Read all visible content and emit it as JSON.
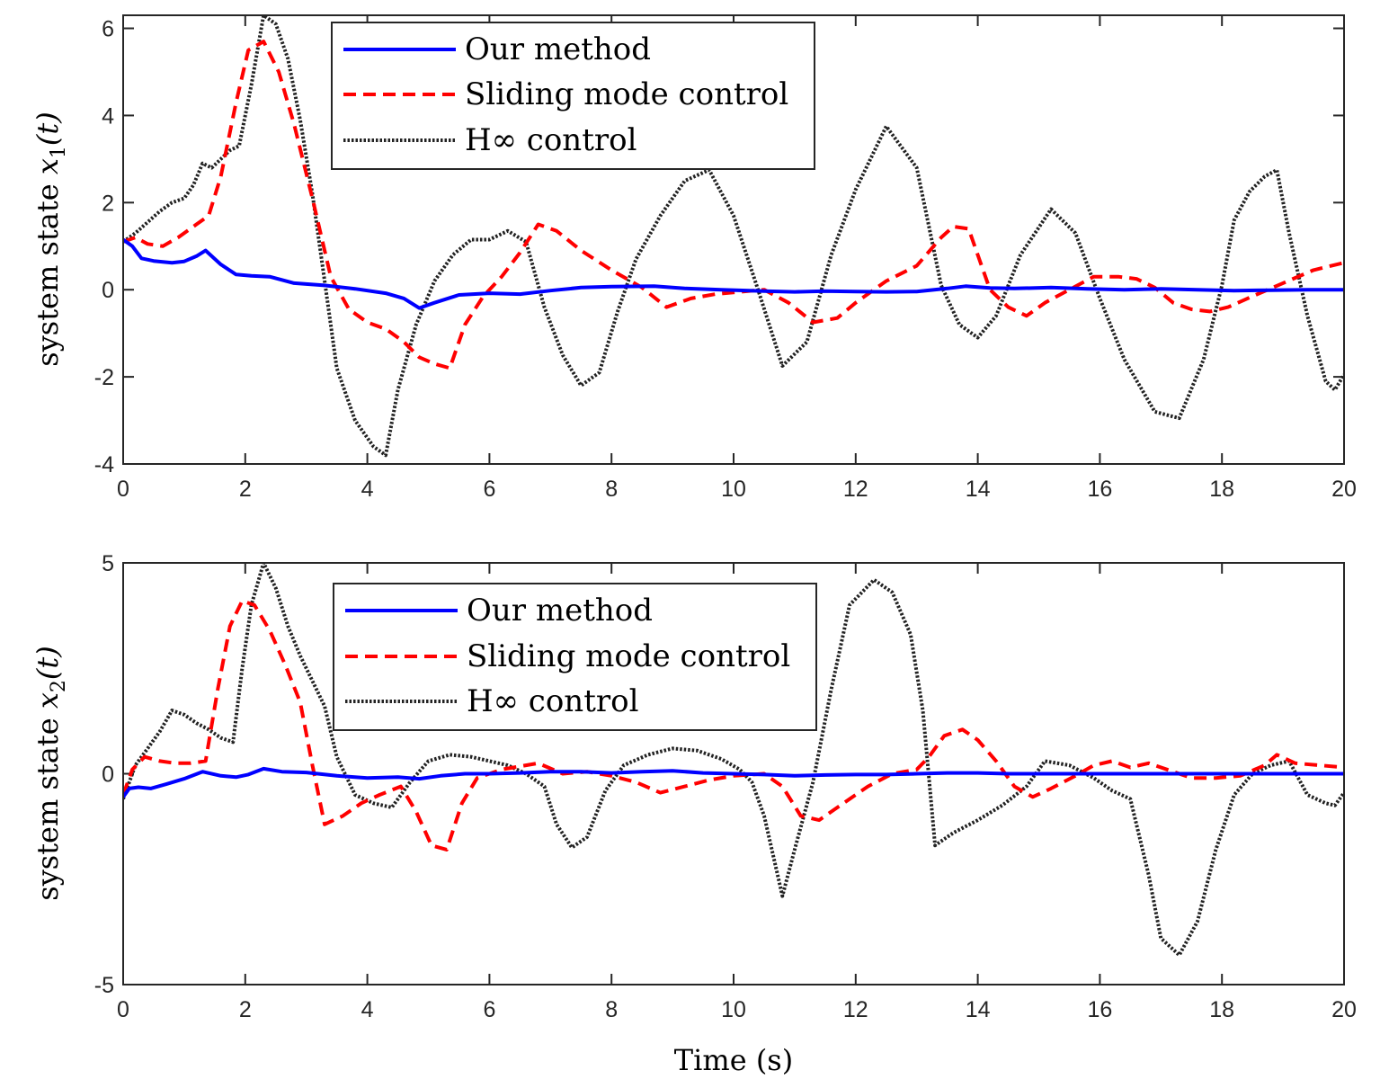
{
  "chart_data": [
    {
      "type": "line",
      "ylabel_text": "system state ",
      "ylabel_var": "x",
      "ylabel_sub": "1",
      "ylabel_arg": "(t)",
      "xlim": [
        0,
        20
      ],
      "ylim": [
        -4,
        6.3
      ],
      "xticks": [
        "0",
        "2",
        "4",
        "6",
        "8",
        "10",
        "12",
        "14",
        "16",
        "18",
        "20"
      ],
      "yticks": [
        "-4",
        "-2",
        "0",
        "2",
        "4",
        "6"
      ],
      "legend_position": "top-center",
      "series": [
        {
          "name": "Our method",
          "color": "#0000ff",
          "style": "solid",
          "x": [
            0,
            0.15,
            0.3,
            0.5,
            0.8,
            1.0,
            1.2,
            1.35,
            1.6,
            1.85,
            2.1,
            2.4,
            2.8,
            3.3,
            3.8,
            4.3,
            4.6,
            4.85,
            5.1,
            5.5,
            6.0,
            6.5,
            7.0,
            7.5,
            8.0,
            8.7,
            9.2,
            9.8,
            10.5,
            11.0,
            11.5,
            12.0,
            12.5,
            13.0,
            13.5,
            13.8,
            14.2,
            14.6,
            15.2,
            15.8,
            16.4,
            17.0,
            17.6,
            18.2,
            18.8,
            19.4,
            20.0
          ],
          "y": [
            1.15,
            1.0,
            0.72,
            0.66,
            0.62,
            0.65,
            0.77,
            0.9,
            0.58,
            0.35,
            0.32,
            0.3,
            0.15,
            0.1,
            0.02,
            -0.08,
            -0.2,
            -0.42,
            -0.3,
            -0.12,
            -0.08,
            -0.1,
            -0.02,
            0.05,
            0.07,
            0.08,
            0.03,
            0.0,
            -0.03,
            -0.05,
            -0.03,
            -0.04,
            -0.05,
            -0.04,
            0.03,
            0.08,
            0.04,
            0.03,
            0.05,
            0.02,
            0.0,
            0.02,
            0.0,
            -0.02,
            -0.01,
            0.0,
            0.0
          ]
        },
        {
          "name": "Sliding mode control",
          "color": "#ff0000",
          "style": "dashed",
          "x": [
            0,
            0.2,
            0.4,
            0.65,
            0.9,
            1.2,
            1.4,
            1.6,
            1.85,
            2.05,
            2.3,
            2.55,
            2.8,
            3.1,
            3.4,
            3.7,
            4.0,
            4.3,
            4.6,
            4.85,
            5.1,
            5.35,
            5.6,
            5.9,
            6.2,
            6.5,
            6.8,
            7.1,
            7.5,
            8.0,
            8.5,
            8.9,
            9.3,
            9.7,
            10.1,
            10.5,
            10.9,
            11.3,
            11.7,
            12.0,
            12.5,
            13.0,
            13.4,
            13.6,
            13.85,
            14.0,
            14.2,
            14.5,
            14.8,
            15.1,
            15.5,
            15.9,
            16.3,
            16.6,
            16.9,
            17.2,
            17.5,
            17.8,
            18.1,
            18.5,
            19.0,
            19.5,
            20.0
          ],
          "y": [
            1.1,
            1.2,
            1.05,
            1.0,
            1.2,
            1.5,
            1.7,
            2.6,
            4.3,
            5.5,
            5.7,
            5.0,
            3.8,
            2.1,
            0.3,
            -0.45,
            -0.75,
            -0.9,
            -1.2,
            -1.55,
            -1.7,
            -1.8,
            -0.8,
            -0.15,
            0.3,
            0.85,
            1.5,
            1.35,
            0.9,
            0.45,
            0.05,
            -0.4,
            -0.2,
            -0.1,
            -0.05,
            0.0,
            -0.3,
            -0.75,
            -0.65,
            -0.3,
            0.2,
            0.55,
            1.2,
            1.45,
            1.4,
            0.8,
            0.0,
            -0.4,
            -0.6,
            -0.3,
            0.0,
            0.3,
            0.3,
            0.25,
            0.05,
            -0.3,
            -0.45,
            -0.5,
            -0.4,
            -0.15,
            0.15,
            0.45,
            0.62
          ]
        },
        {
          "name": "H∞ control",
          "color": "#222222",
          "style": "dotted",
          "x": [
            0,
            0.2,
            0.4,
            0.6,
            0.8,
            1.0,
            1.15,
            1.3,
            1.45,
            1.6,
            1.75,
            1.9,
            2.1,
            2.3,
            2.5,
            2.7,
            2.9,
            3.1,
            3.3,
            3.5,
            3.8,
            4.1,
            4.3,
            4.5,
            4.8,
            5.1,
            5.4,
            5.7,
            6.0,
            6.3,
            6.6,
            6.9,
            7.2,
            7.5,
            7.8,
            8.1,
            8.4,
            8.8,
            9.2,
            9.6,
            10.0,
            10.4,
            10.8,
            11.2,
            11.6,
            12.0,
            12.5,
            13.0,
            13.4,
            13.7,
            14.0,
            14.3,
            14.7,
            15.2,
            15.6,
            16.0,
            16.4,
            16.9,
            17.3,
            17.7,
            18.0,
            18.2,
            18.45,
            18.7,
            18.9,
            19.1,
            19.4,
            19.7,
            19.85,
            20.0
          ],
          "y": [
            1.1,
            1.3,
            1.55,
            1.8,
            2.0,
            2.1,
            2.4,
            2.9,
            2.8,
            3.0,
            3.2,
            3.3,
            4.7,
            6.3,
            6.1,
            5.3,
            3.9,
            2.2,
            0.2,
            -1.8,
            -3.0,
            -3.6,
            -3.8,
            -2.3,
            -0.8,
            0.2,
            0.8,
            1.15,
            1.15,
            1.35,
            1.1,
            -0.4,
            -1.5,
            -2.2,
            -1.9,
            -0.5,
            0.7,
            1.7,
            2.5,
            2.75,
            1.7,
            0.0,
            -1.75,
            -1.2,
            0.8,
            2.3,
            3.75,
            2.8,
            0.1,
            -0.8,
            -1.1,
            -0.6,
            0.8,
            1.85,
            1.3,
            -0.2,
            -1.6,
            -2.8,
            -2.95,
            -1.6,
            0.1,
            1.6,
            2.25,
            2.6,
            2.75,
            1.3,
            -0.6,
            -2.1,
            -2.3,
            -1.95
          ]
        }
      ]
    },
    {
      "type": "line",
      "ylabel_text": "system state ",
      "ylabel_var": "x",
      "ylabel_sub": "2",
      "ylabel_arg": "(t)",
      "xlabel": "Time (s)",
      "xlim": [
        0,
        20
      ],
      "ylim": [
        -5,
        5
      ],
      "xticks": [
        "0",
        "2",
        "4",
        "6",
        "8",
        "10",
        "12",
        "14",
        "16",
        "18",
        "20"
      ],
      "yticks": [
        "-5",
        "0",
        "5"
      ],
      "legend_position": "top-center",
      "series": [
        {
          "name": "Our method",
          "color": "#0000ff",
          "style": "solid",
          "x": [
            0,
            0.1,
            0.25,
            0.45,
            0.7,
            1.0,
            1.3,
            1.6,
            1.85,
            2.05,
            2.3,
            2.6,
            3.0,
            3.5,
            4.0,
            4.5,
            4.85,
            5.2,
            5.6,
            6.0,
            6.5,
            7.0,
            7.5,
            8.0,
            8.5,
            9.0,
            9.5,
            10.0,
            10.5,
            11.0,
            11.5,
            12.0,
            12.5,
            13.0,
            13.5,
            14.0,
            14.5,
            15.0,
            16.0,
            17.0,
            18.0,
            19.0,
            20.0
          ],
          "y": [
            -0.55,
            -0.35,
            -0.32,
            -0.35,
            -0.25,
            -0.12,
            0.05,
            -0.05,
            -0.08,
            -0.02,
            0.12,
            0.05,
            0.03,
            -0.05,
            -0.1,
            -0.08,
            -0.12,
            -0.05,
            0.0,
            0.0,
            0.02,
            0.05,
            0.05,
            0.02,
            0.05,
            0.07,
            0.02,
            0.0,
            -0.02,
            -0.05,
            -0.03,
            -0.02,
            -0.02,
            0.0,
            0.02,
            0.02,
            0.0,
            0.0,
            0.0,
            0.0,
            0.0,
            0.0,
            0.0
          ]
        },
        {
          "name": "Sliding mode control",
          "color": "#ff0000",
          "style": "dashed",
          "x": [
            0,
            0.15,
            0.35,
            0.6,
            0.85,
            1.1,
            1.35,
            1.55,
            1.75,
            1.95,
            2.15,
            2.4,
            2.65,
            2.9,
            3.1,
            3.3,
            3.6,
            3.9,
            4.2,
            4.55,
            4.8,
            5.05,
            5.3,
            5.55,
            5.8,
            6.2,
            6.8,
            7.2,
            7.6,
            8.0,
            8.4,
            8.8,
            9.2,
            9.6,
            10.0,
            10.5,
            10.8,
            11.1,
            11.4,
            11.8,
            12.2,
            12.6,
            13.0,
            13.2,
            13.45,
            13.75,
            14.0,
            14.3,
            14.6,
            14.9,
            15.2,
            15.6,
            15.9,
            16.2,
            16.5,
            16.8,
            17.1,
            17.5,
            17.9,
            18.3,
            18.7,
            18.9,
            19.2,
            19.6,
            20.0
          ],
          "y": [
            -0.5,
            0.1,
            0.4,
            0.3,
            0.25,
            0.25,
            0.3,
            2.0,
            3.5,
            4.1,
            4.0,
            3.4,
            2.6,
            1.7,
            0.2,
            -1.2,
            -1.0,
            -0.7,
            -0.5,
            -0.3,
            -0.9,
            -1.7,
            -1.8,
            -0.7,
            -0.1,
            0.1,
            0.25,
            0.0,
            0.05,
            -0.05,
            -0.2,
            -0.45,
            -0.3,
            -0.15,
            -0.05,
            0.0,
            -0.3,
            -1.0,
            -1.1,
            -0.7,
            -0.3,
            0.0,
            0.1,
            0.4,
            0.9,
            1.05,
            0.8,
            0.3,
            -0.3,
            -0.55,
            -0.35,
            -0.05,
            0.2,
            0.3,
            0.15,
            0.25,
            0.1,
            -0.1,
            -0.1,
            -0.05,
            0.2,
            0.45,
            0.25,
            0.2,
            0.15
          ]
        },
        {
          "name": "H∞ control",
          "color": "#222222",
          "style": "dotted",
          "x": [
            0,
            0.2,
            0.4,
            0.6,
            0.8,
            1.0,
            1.2,
            1.4,
            1.6,
            1.8,
            1.95,
            2.1,
            2.3,
            2.5,
            2.7,
            2.9,
            3.1,
            3.3,
            3.5,
            3.8,
            4.1,
            4.4,
            4.7,
            5.0,
            5.35,
            5.7,
            6.0,
            6.3,
            6.6,
            6.9,
            7.1,
            7.35,
            7.6,
            7.9,
            8.2,
            8.6,
            9.0,
            9.4,
            9.8,
            10.1,
            10.3,
            10.5,
            10.8,
            11.0,
            11.3,
            11.6,
            11.9,
            12.3,
            12.6,
            12.9,
            13.1,
            13.3,
            13.6,
            14.0,
            14.4,
            14.8,
            15.1,
            15.5,
            15.9,
            16.2,
            16.5,
            16.8,
            17.0,
            17.3,
            17.6,
            17.9,
            18.2,
            18.5,
            18.8,
            19.1,
            19.4,
            19.7,
            19.85,
            20.0
          ],
          "y": [
            -0.6,
            0.2,
            0.6,
            1.0,
            1.5,
            1.4,
            1.2,
            1.05,
            0.85,
            0.75,
            2.5,
            4.0,
            5.0,
            4.4,
            3.5,
            2.8,
            2.2,
            1.6,
            0.4,
            -0.5,
            -0.7,
            -0.8,
            -0.2,
            0.3,
            0.45,
            0.4,
            0.3,
            0.2,
            0.0,
            -0.3,
            -1.2,
            -1.75,
            -1.5,
            -0.4,
            0.2,
            0.45,
            0.6,
            0.55,
            0.35,
            0.1,
            -0.2,
            -1.0,
            -2.9,
            -1.8,
            -0.2,
            2.0,
            4.0,
            4.6,
            4.3,
            3.3,
            1.5,
            -1.7,
            -1.4,
            -1.1,
            -0.75,
            -0.3,
            0.3,
            0.2,
            -0.1,
            -0.4,
            -0.6,
            -2.4,
            -3.9,
            -4.3,
            -3.5,
            -1.8,
            -0.5,
            0.0,
            0.2,
            0.3,
            -0.5,
            -0.7,
            -0.75,
            -0.45
          ]
        }
      ]
    }
  ]
}
